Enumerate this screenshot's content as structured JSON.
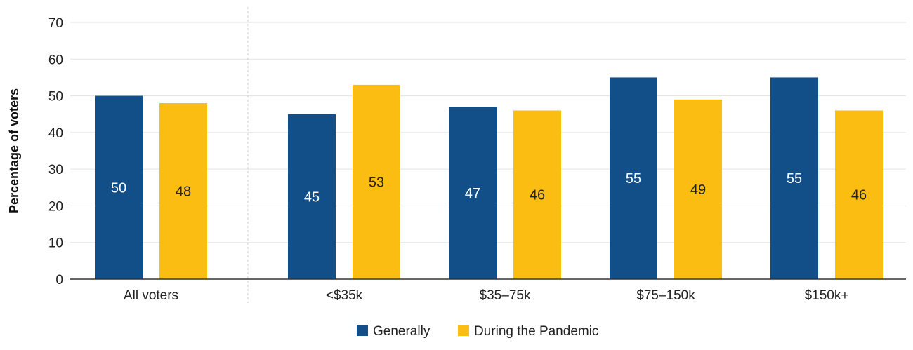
{
  "chart_data": {
    "type": "bar",
    "categories": [
      "All voters",
      "<$35k",
      "$35–75k",
      "$75–150k",
      "$150k+"
    ],
    "series": [
      {
        "name": "Generally",
        "color": "#124e87",
        "label_color": "#ffffff",
        "values": [
          50,
          45,
          47,
          55,
          55
        ]
      },
      {
        "name": "During the Pandemic",
        "color": "#fbbd12",
        "label_color": "#222222",
        "values": [
          48,
          53,
          46,
          49,
          46
        ]
      }
    ],
    "title": "",
    "xlabel": "",
    "ylabel": "Percentage of voters",
    "ylim": [
      0,
      70
    ],
    "yticks": [
      0,
      10,
      20,
      30,
      40,
      50,
      60,
      70
    ],
    "grid": true,
    "legend_position": "bottom-center",
    "separator_after_category": "All voters"
  }
}
